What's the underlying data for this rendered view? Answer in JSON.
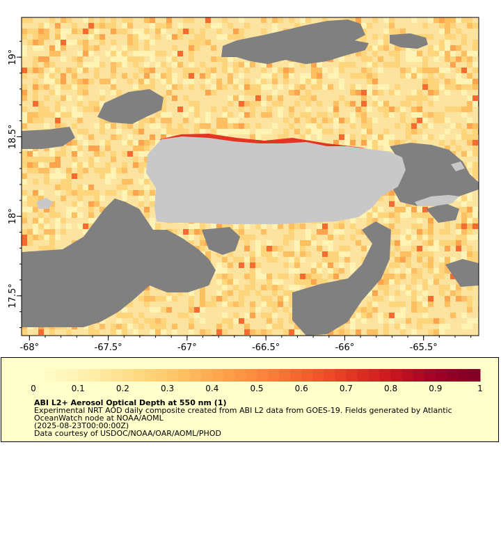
{
  "map": {
    "x_ticks": [
      "-68°",
      "-67.5°",
      "-67°",
      "-66.5°",
      "-66°",
      "-65.5°"
    ],
    "y_ticks": [
      "19°",
      "18.5°",
      "18°",
      "17.5°"
    ],
    "lon_range": [
      -68.05,
      -65.15
    ],
    "lat_range": [
      17.25,
      19.25
    ],
    "tick_values_x": [
      -68,
      -67.5,
      -67,
      -66.5,
      -66,
      -65.5
    ],
    "tick_values_y": [
      19,
      18.5,
      18,
      17.5
    ],
    "colors": {
      "no_data": "#808080",
      "land": "#c8c8c8",
      "frame": "#000000"
    }
  },
  "legend": {
    "ticks": [
      "0",
      "0.1",
      "0.2",
      "0.3",
      "0.4",
      "0.5",
      "0.6",
      "0.7",
      "0.8",
      "0.9",
      "1"
    ],
    "range": [
      0,
      1
    ],
    "title": "ABI L2+ Aerosol Optical Depth at 550 nm (1)",
    "description": "Experimental NRT AOD daily composite created from ABI L2 data from GOES-19. Fields generated by Atlantic OceanWatch node at NOAA/AOML",
    "date": "(2025-08-23T00:00:00Z)",
    "credit": "Data courtesy of USDOC/NOAA/OAR/AOML/PHOD",
    "colors": [
      "#ffffcc",
      "#fff3b5",
      "#ffe699",
      "#fed57a",
      "#fdbf60",
      "#fda44c",
      "#fc8a3f",
      "#f76b31",
      "#ee4a28",
      "#db2a22",
      "#c21021",
      "#9e0027",
      "#800026"
    ]
  }
}
